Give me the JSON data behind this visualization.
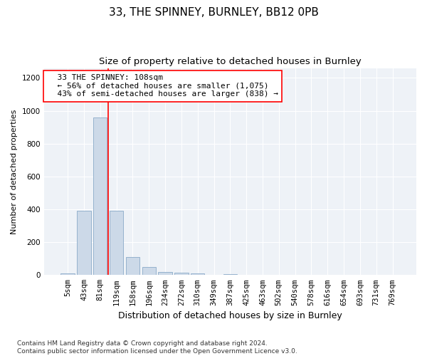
{
  "title": "33, THE SPINNEY, BURNLEY, BB12 0PB",
  "subtitle": "Size of property relative to detached houses in Burnley",
  "xlabel": "Distribution of detached houses by size in Burnley",
  "ylabel": "Number of detached properties",
  "categories": [
    "5sqm",
    "43sqm",
    "81sqm",
    "119sqm",
    "158sqm",
    "196sqm",
    "234sqm",
    "272sqm",
    "310sqm",
    "349sqm",
    "387sqm",
    "425sqm",
    "463sqm",
    "502sqm",
    "540sqm",
    "578sqm",
    "616sqm",
    "654sqm",
    "693sqm",
    "731sqm",
    "769sqm"
  ],
  "values": [
    10,
    390,
    960,
    390,
    110,
    50,
    20,
    15,
    10,
    0,
    5,
    0,
    0,
    0,
    0,
    0,
    0,
    0,
    0,
    0,
    0
  ],
  "bar_color": "#ccd9e8",
  "bar_edge_color": "#8aaac8",
  "vline_x": 2.5,
  "vline_color": "red",
  "annotation_text": "  33 THE SPINNEY: 108sqm\n  ← 56% of detached houses are smaller (1,075)\n  43% of semi-detached houses are larger (838) →",
  "annotation_box_color": "white",
  "annotation_box_edge_color": "red",
  "ylim": [
    0,
    1260
  ],
  "yticks": [
    0,
    200,
    400,
    600,
    800,
    1000,
    1200
  ],
  "footer": "Contains HM Land Registry data © Crown copyright and database right 2024.\nContains public sector information licensed under the Open Government Licence v3.0.",
  "title_fontsize": 11,
  "subtitle_fontsize": 9.5,
  "xlabel_fontsize": 9,
  "ylabel_fontsize": 8,
  "tick_fontsize": 7.5,
  "annotation_fontsize": 8,
  "footer_fontsize": 6.5,
  "bg_color": "#ffffff",
  "plot_bg_color": "#eef2f7"
}
